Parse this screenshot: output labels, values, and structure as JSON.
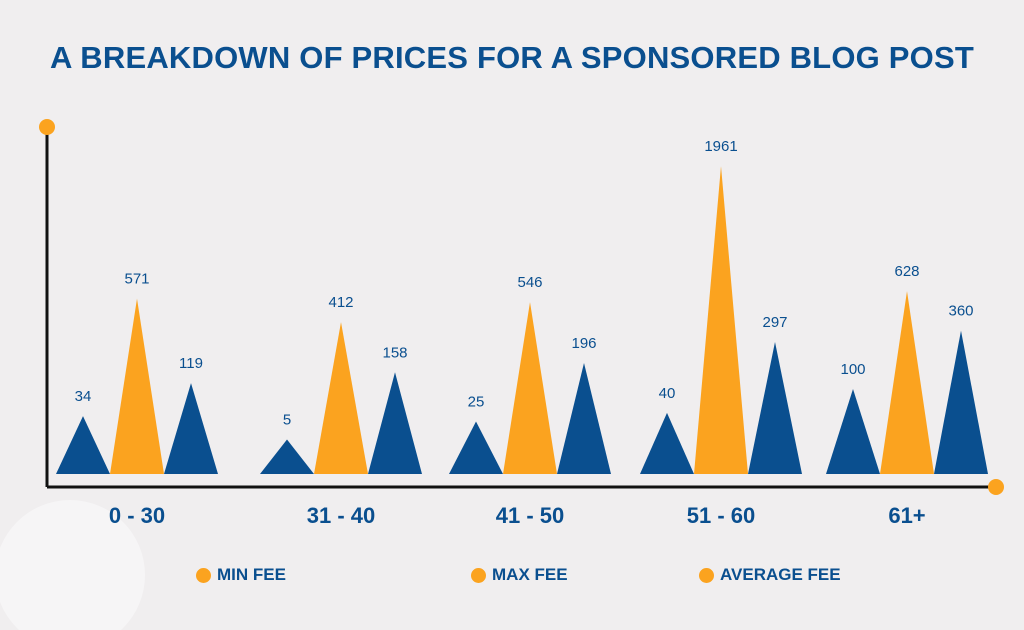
{
  "chart_data": {
    "type": "bar",
    "title": "A BREAKDOWN OF PRICES FOR A SPONSORED BLOG POST",
    "categories": [
      "0 - 30",
      "31 - 40",
      "41 - 50",
      "51 - 60",
      "61+"
    ],
    "series": [
      {
        "name": "MIN FEE",
        "color": "#0a4f8f",
        "values": [
          34,
          5,
          25,
          40,
          100
        ]
      },
      {
        "name": "MAX FEE",
        "color": "#fba31f",
        "values": [
          571,
          412,
          546,
          1961,
          628
        ]
      },
      {
        "name": "AVERAGE FEE",
        "color": "#0a4f8f",
        "values": [
          119,
          158,
          196,
          297,
          360
        ]
      }
    ],
    "legend_dot_color": "#fba31f",
    "legend": "bottom",
    "grid": false,
    "xlabel": "",
    "ylabel": ""
  }
}
